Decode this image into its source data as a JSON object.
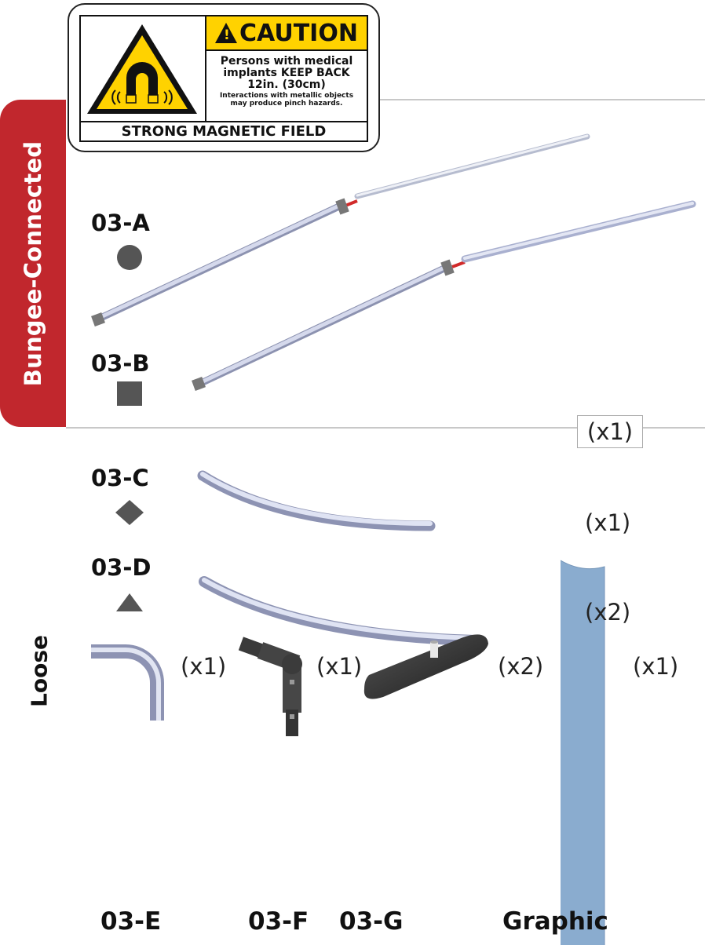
{
  "sections": {
    "bungee_label": "Bungee-Connected",
    "loose_label": "Loose"
  },
  "caution_sign": {
    "header": "CAUTION",
    "exclamation": "!",
    "line1": "Persons with medical",
    "line2": "implants KEEP BACK",
    "line3": "12in. (30cm)",
    "line4": "Interactions with metallic objects",
    "line5": "may produce pinch hazards.",
    "footer": "STRONG MAGNETIC FIELD",
    "header_color": "#ffd200"
  },
  "parts": {
    "a": {
      "label": "03-A",
      "marker": "circle"
    },
    "b": {
      "label": "03-B",
      "marker": "square"
    },
    "c": {
      "label": "03-C",
      "marker": "diamond",
      "qty": "(x1)"
    },
    "d": {
      "label": "03-D",
      "marker": "triangle",
      "qty": "(x2)"
    },
    "bungee_qty": "(x1)",
    "e": {
      "label": "03-E",
      "qty": "(x1)"
    },
    "f": {
      "label": "03-F",
      "qty": "(x1)"
    },
    "g": {
      "label": "03-G",
      "qty": "(x2)"
    },
    "graphic": {
      "label": "Graphic",
      "qty": "(x1)"
    }
  },
  "colors": {
    "accent_red": "#c1272d",
    "marker_gray": "#555555",
    "tube": "#c9cfe6",
    "graphic_blue": "#8aaccf"
  }
}
